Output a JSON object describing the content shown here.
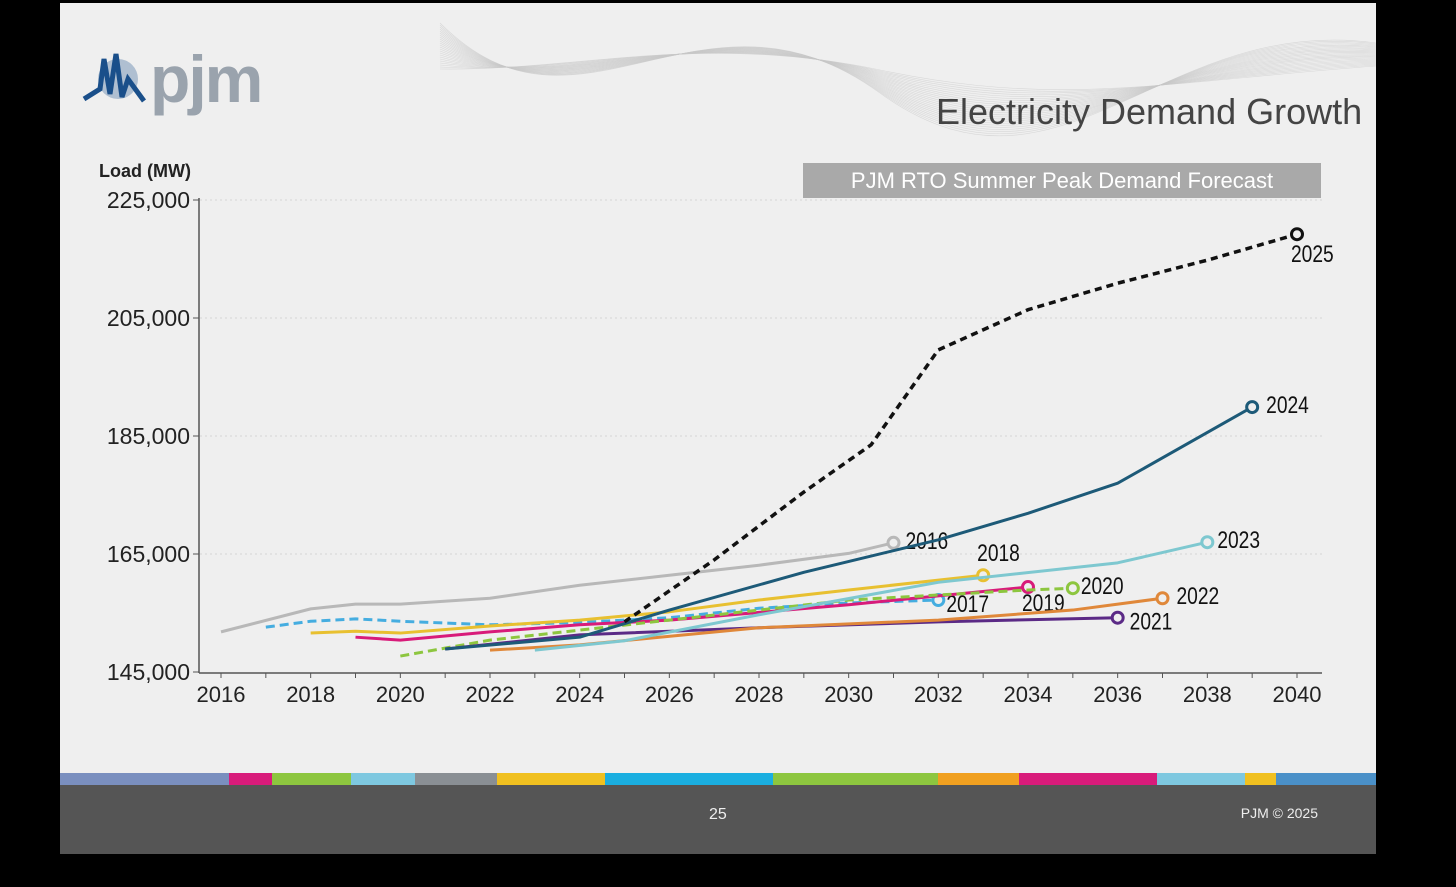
{
  "slide": {
    "logo_text": "pjm",
    "title": "Electricity Demand Growth",
    "page_number": "25",
    "copyright": "PJM © 2025",
    "strip_colors": [
      "#7a8fbf",
      "#d81b7a",
      "#8dc63f",
      "#7ec8e0",
      "#8a8f94",
      "#f0c020",
      "#1aaee0",
      "#8dc63f",
      "#f0a020",
      "#d81b7a",
      "#7ec8e0",
      "#f0c020",
      "#4a90c8"
    ]
  },
  "chart_data": {
    "type": "line",
    "title": "PJM RTO Summer Peak Demand Forecast",
    "ylabel": "Load (MW)",
    "xlabel": "",
    "xlim": [
      2016,
      2040
    ],
    "ylim": [
      145000,
      225000
    ],
    "xticks": [
      "2016",
      "2018",
      "2020",
      "2022",
      "2024",
      "2026",
      "2028",
      "2030",
      "2032",
      "2034",
      "2036",
      "2038",
      "2040"
    ],
    "yticks": [
      "145,000",
      "165,000",
      "185,000",
      "205,000",
      "225,000"
    ],
    "ytick_values": [
      145000,
      165000,
      185000,
      205000,
      225000
    ],
    "series": [
      {
        "name": "2016",
        "color": "#b8b8b8",
        "dashed": false,
        "x": [
          2016,
          2018,
          2019,
          2020,
          2022,
          2024,
          2026,
          2028,
          2030,
          2031
        ],
        "y": [
          151800,
          155700,
          156500,
          156500,
          157500,
          159700,
          161400,
          163100,
          165100,
          166900
        ]
      },
      {
        "name": "2017",
        "color": "#45ade0",
        "dashed": true,
        "x": [
          2017,
          2018,
          2019,
          2020,
          2022,
          2024,
          2026,
          2028,
          2030,
          2032
        ],
        "y": [
          152600,
          153600,
          154000,
          153600,
          153000,
          153400,
          154200,
          155800,
          156700,
          157200
        ]
      },
      {
        "name": "2018",
        "color": "#e8c030",
        "dashed": false,
        "x": [
          2018,
          2019,
          2020,
          2022,
          2024,
          2026,
          2028,
          2030,
          2033
        ],
        "y": [
          151600,
          151900,
          151600,
          152800,
          153800,
          155200,
          157200,
          158900,
          161400
        ]
      },
      {
        "name": "2019",
        "color": "#d81b7a",
        "dashed": false,
        "x": [
          2019,
          2020,
          2022,
          2024,
          2026,
          2030,
          2034
        ],
        "y": [
          150900,
          150400,
          151800,
          153000,
          153800,
          156400,
          159400
        ]
      },
      {
        "name": "2020",
        "color": "#8dc63f",
        "dashed": true,
        "x": [
          2020,
          2022,
          2024,
          2026,
          2030,
          2034,
          2035
        ],
        "y": [
          147700,
          150400,
          152100,
          153800,
          157200,
          158900,
          159200
        ]
      },
      {
        "name": "2021",
        "color": "#5b2a86",
        "dashed": false,
        "x": [
          2021,
          2024,
          2028,
          2032,
          2036
        ],
        "y": [
          148900,
          151300,
          152500,
          153500,
          154200
        ]
      },
      {
        "name": "2022",
        "color": "#e0883a",
        "dashed": false,
        "x": [
          2022,
          2024,
          2028,
          2032,
          2035,
          2037
        ],
        "y": [
          148700,
          149600,
          152500,
          153800,
          155500,
          157500
        ]
      },
      {
        "name": "2023",
        "color": "#7ec8d0",
        "dashed": false,
        "x": [
          2023,
          2025,
          2028,
          2032,
          2036,
          2038
        ],
        "y": [
          148700,
          150300,
          154700,
          160200,
          163500,
          167000
        ]
      },
      {
        "name": "2024",
        "color": "#1d5a78",
        "dashed": false,
        "x": [
          2021,
          2024,
          2026,
          2029,
          2032,
          2034,
          2036,
          2039
        ],
        "y": [
          148900,
          150900,
          155500,
          161900,
          167400,
          171900,
          177000,
          189900
        ]
      },
      {
        "name": "2025",
        "color": "#111111",
        "dashed": true,
        "x": [
          2025,
          2027,
          2029,
          2030.5,
          2032,
          2034,
          2036,
          2038,
          2040
        ],
        "y": [
          153500,
          164000,
          175500,
          183500,
          199600,
          206400,
          210900,
          214800,
          219200
        ]
      }
    ]
  }
}
